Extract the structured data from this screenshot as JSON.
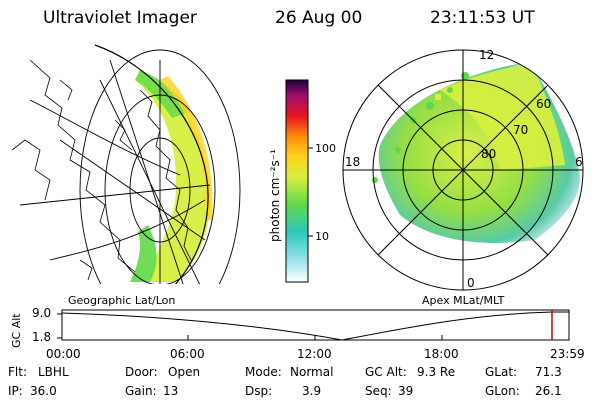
{
  "header": {
    "title": "Ultraviolet Imager",
    "date": "26 Aug 00",
    "time": "23:11:53 UT"
  },
  "colorbar": {
    "unit_label": "photon cm⁻²s⁻¹",
    "ticks": [
      "100",
      "10"
    ],
    "scale": "log"
  },
  "panels": {
    "left_label": "Geographic Lat/Lon",
    "right_label": "Apex MLat/MLT"
  },
  "polar": {
    "mlt_labels": [
      "12",
      "18",
      "6",
      "0"
    ],
    "mlat_labels": [
      "60",
      "70",
      "80"
    ]
  },
  "alt_plot": {
    "axis_label": "GC Alt",
    "y_ticks": [
      "9.0",
      "1.8"
    ],
    "x_ticks": [
      "00:00",
      "06:00",
      "12:00",
      "18:00",
      "23:59"
    ]
  },
  "status": {
    "row1": [
      {
        "label": "Flt:",
        "value": "LBHL"
      },
      {
        "label": "Door:",
        "value": "Open"
      },
      {
        "label": "Mode:",
        "value": "Normal"
      },
      {
        "label": "GC Alt:",
        "value": "9.3 Re"
      },
      {
        "label": "GLat:",
        "value": "71.3"
      }
    ],
    "row2": [
      {
        "label": "IP:",
        "value": "36.0"
      },
      {
        "label": "Gain:",
        "value": "13"
      },
      {
        "label": "Dsp:",
        "value": "3.9"
      },
      {
        "label": "Seq:",
        "value": "39"
      },
      {
        "label": "GLon:",
        "value": "26.1"
      }
    ]
  },
  "colors": {
    "bg": "#ffffff",
    "line": "#000000",
    "marker": "#cc0000"
  }
}
